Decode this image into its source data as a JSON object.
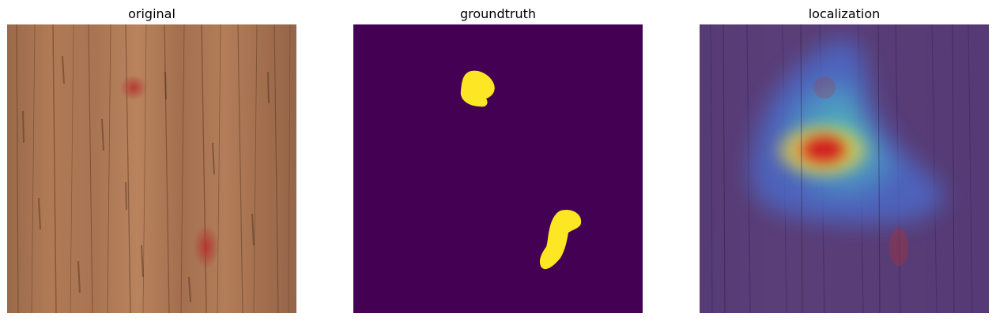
{
  "figure": {
    "panels": [
      {
        "title": "original",
        "content": "wood-texture-with-red-stains"
      },
      {
        "title": "groundtruth",
        "content": "binary-mask",
        "colors": {
          "background": "#440154",
          "mask": "#fde725"
        }
      },
      {
        "title": "localization",
        "content": "heatmap-overlay-on-wood",
        "colors": {
          "low": "#3b2a86",
          "mid": "#49c7b1",
          "high": "#e8322a"
        }
      }
    ]
  }
}
